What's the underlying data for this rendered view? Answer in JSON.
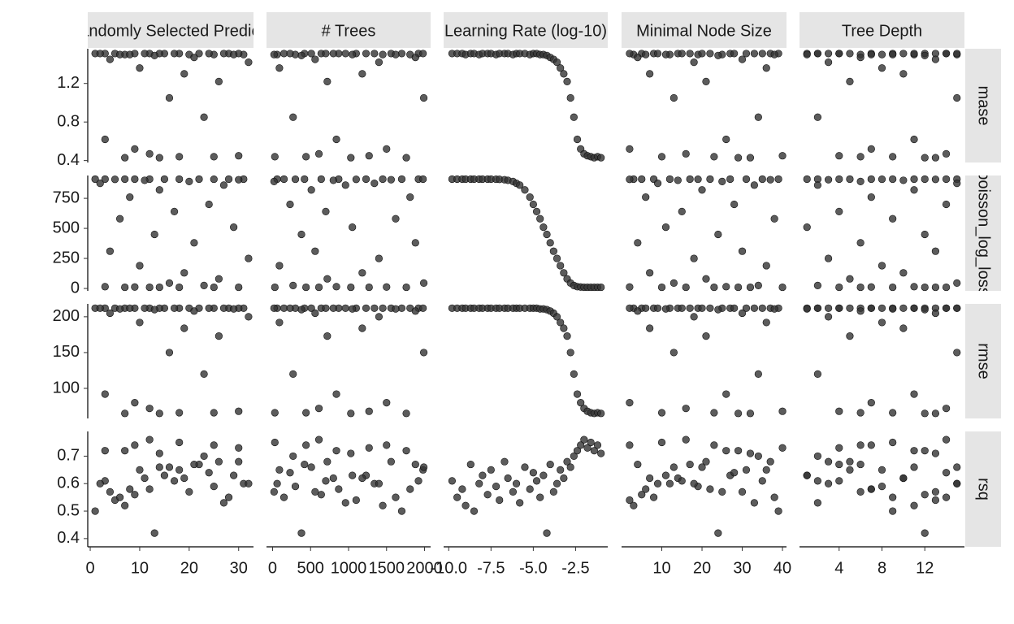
{
  "chart_data": {
    "type": "scatter",
    "color": "#333333",
    "columns": [
      {
        "label": "# Randomly Selected Predictors",
        "xlim": [
          -0.5,
          33
        ],
        "xticks": [
          0,
          10,
          20,
          30
        ],
        "x": [
          3,
          28,
          12,
          7,
          22,
          1,
          31,
          15,
          9,
          18,
          25,
          5,
          30,
          11,
          20,
          2,
          27,
          14,
          8,
          24,
          17,
          6,
          29,
          13,
          21,
          4,
          32,
          10,
          19,
          26,
          16,
          23,
          3,
          9,
          12,
          30,
          18,
          7,
          25,
          14
        ]
      },
      {
        "label": "# Trees",
        "xlim": [
          -80,
          2080
        ],
        "xticks": [
          0,
          500,
          1000,
          1500,
          2000
        ],
        "x": [
          1920,
          150,
          870,
          1450,
          420,
          1700,
          60,
          1230,
          640,
          1980,
          300,
          1100,
          1560,
          800,
          20,
          1340,
          960,
          510,
          1810,
          230,
          700,
          1620,
          1050,
          380,
          1880,
          560,
          1400,
          90,
          1180,
          720,
          1990,
          270,
          840,
          1500,
          610,
          1270,
          30,
          1760,
          440,
          1030
        ]
      },
      {
        "label": "Learning Rate (log-10)",
        "xlim": [
          -10.3,
          -0.6
        ],
        "xticks": [
          {
            "value": -10,
            "label": "-10.0"
          },
          -7.5,
          {
            "value": -5,
            "label": "-5.0"
          },
          -2.5
        ],
        "x": [
          -9.8,
          -9.5,
          -9.2,
          -9.0,
          -8.7,
          -8.5,
          -8.2,
          -8.0,
          -7.7,
          -7.5,
          -7.2,
          -7.0,
          -6.7,
          -6.5,
          -6.2,
          -6.0,
          -5.8,
          -5.5,
          -5.2,
          -5.0,
          -4.8,
          -4.6,
          -4.4,
          -4.2,
          -4.0,
          -3.8,
          -3.6,
          -3.4,
          -3.2,
          -3.0,
          -2.8,
          -2.6,
          -2.4,
          -2.2,
          -2.0,
          -1.8,
          -1.6,
          -1.4,
          -1.2,
          -1.0
        ]
      },
      {
        "label": "Minimal Node Size",
        "xlim": [
          0,
          41
        ],
        "xticks": [
          10,
          20,
          30,
          40
        ],
        "x": [
          35,
          8,
          22,
          3,
          17,
          39,
          12,
          27,
          5,
          31,
          19,
          2,
          37,
          14,
          25,
          9,
          33,
          20,
          6,
          28,
          15,
          38,
          11,
          24,
          4,
          30,
          18,
          36,
          7,
          21,
          13,
          34,
          26,
          2,
          16,
          40,
          10,
          29,
          23,
          32
        ]
      },
      {
        "label": "Tree Depth",
        "xlim": [
          0.3,
          15.7
        ],
        "xticks": [
          4,
          8,
          12
        ],
        "x": [
          2,
          14,
          7,
          11,
          4,
          9,
          15,
          1,
          12,
          5,
          8,
          13,
          3,
          10,
          6,
          15,
          2,
          11,
          7,
          14,
          4,
          9,
          1,
          12,
          6,
          13,
          3,
          8,
          10,
          5,
          15,
          2,
          11,
          7,
          14,
          4,
          9,
          12,
          6,
          13
        ]
      }
    ],
    "rows": [
      {
        "label": "mase",
        "ylim": [
          0.38,
          1.56
        ],
        "yticks": [
          0.4,
          0.8,
          1.2
        ],
        "values": [
          1.51,
          1.51,
          1.51,
          1.5,
          1.51,
          1.51,
          1.5,
          1.51,
          1.51,
          1.51,
          1.5,
          1.51,
          1.51,
          1.51,
          1.5,
          1.51,
          1.51,
          1.51,
          1.5,
          1.51,
          1.51,
          1.5,
          1.5,
          1.49,
          1.47,
          1.45,
          1.42,
          1.36,
          1.3,
          1.22,
          1.05,
          0.85,
          0.62,
          0.52,
          0.47,
          0.45,
          0.44,
          0.43,
          0.44,
          0.43
        ]
      },
      {
        "label": "poisson_log_loss",
        "ylim": [
          -20,
          940
        ],
        "yticks": [
          0,
          250,
          500,
          750
        ],
        "values": [
          910,
          910,
          910,
          910,
          910,
          910,
          910,
          910,
          910,
          910,
          909,
          908,
          905,
          900,
          890,
          875,
          860,
          820,
          760,
          700,
          640,
          580,
          510,
          450,
          380,
          310,
          250,
          190,
          130,
          80,
          45,
          25,
          15,
          12,
          10,
          10,
          10,
          10,
          10,
          10
        ]
      },
      {
        "label": "rmse",
        "ylim": [
          58,
          218
        ],
        "yticks": [
          100,
          150,
          200
        ],
        "values": [
          212,
          212,
          212,
          212,
          212,
          212,
          212,
          212,
          212,
          212,
          212,
          212,
          212,
          212,
          212,
          212,
          212,
          212,
          212,
          212,
          212,
          211,
          211,
          210,
          208,
          205,
          200,
          192,
          184,
          173,
          150,
          120,
          92,
          80,
          72,
          68,
          66,
          65,
          66,
          65
        ]
      },
      {
        "label": "rsq",
        "ylim": [
          0.37,
          0.79
        ],
        "yticks": [
          0.4,
          0.5,
          0.6,
          0.7
        ],
        "values": [
          0.61,
          0.55,
          0.58,
          0.52,
          0.67,
          0.5,
          0.6,
          0.63,
          0.56,
          0.65,
          0.59,
          0.54,
          0.68,
          0.62,
          0.57,
          0.6,
          0.53,
          0.66,
          0.58,
          0.64,
          0.61,
          0.55,
          0.63,
          0.42,
          0.67,
          0.57,
          0.6,
          0.65,
          0.62,
          0.68,
          0.66,
          0.7,
          0.72,
          0.74,
          0.76,
          0.73,
          0.75,
          0.72,
          0.74,
          0.71
        ]
      }
    ]
  }
}
